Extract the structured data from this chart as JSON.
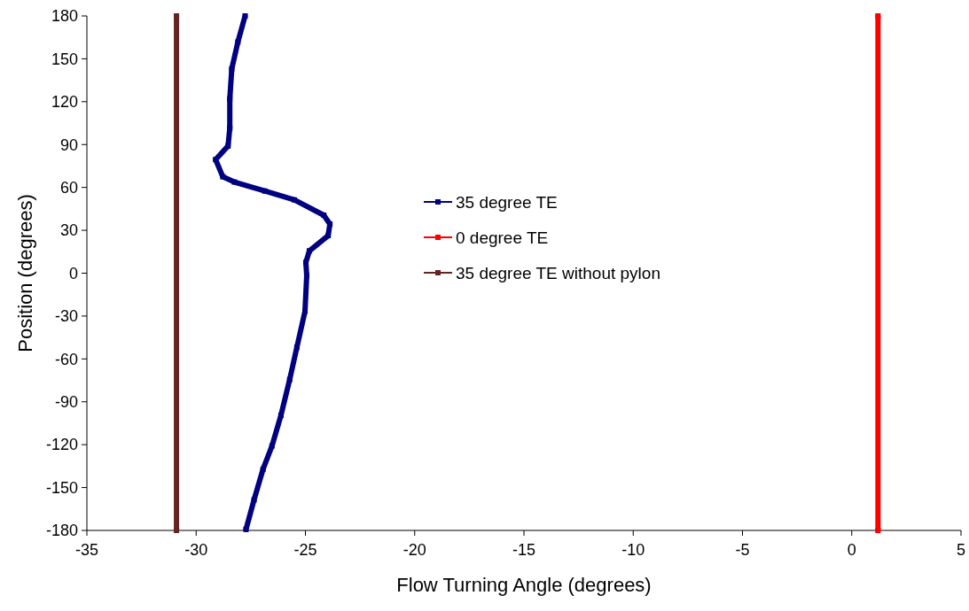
{
  "chart_data": {
    "type": "line",
    "xlabel": "Flow Turning Angle (degrees)",
    "ylabel": "Position (degrees)",
    "xlim": [
      -35,
      5
    ],
    "xticks": [
      -35,
      -30,
      -25,
      -20,
      -15,
      -10,
      -5,
      0,
      5
    ],
    "ylim": [
      -180,
      180
    ],
    "yticks": [
      -180,
      -150,
      -120,
      -90,
      -60,
      -30,
      0,
      30,
      60,
      90,
      120,
      150,
      180
    ],
    "grid": false,
    "legend": "center",
    "marker": "square",
    "line_style": "solid",
    "series": [
      {
        "name": "35 degree TE",
        "color": "#000080",
        "x": [
          -27.76,
          -28.09,
          -28.37,
          -28.46,
          -28.46,
          -28.54,
          -29.11,
          -28.78,
          -28.25,
          -26.86,
          -25.51,
          -24.16,
          -23.88,
          -23.96,
          -24.82,
          -24.98,
          -24.94,
          -25.02,
          -25.39,
          -25.72,
          -26.12,
          -26.53,
          -26.94,
          -27.35,
          -27.72
        ],
        "values": [
          180,
          161.8,
          143,
          122,
          101.5,
          89,
          79.5,
          67.5,
          63.8,
          57.5,
          51.3,
          40.6,
          34.4,
          26.3,
          15.6,
          7.5,
          -1.6,
          -26.7,
          -51.8,
          -74.4,
          -99.5,
          -120.9,
          -137.2,
          -158.6,
          -179.3
        ]
      },
      {
        "name": "0 degree TE",
        "color": "#ff0000",
        "x": [
          1.2,
          1.2
        ],
        "values": [
          -180,
          180
        ]
      },
      {
        "name": "35 degree TE without pylon",
        "color": "#632523",
        "x": [
          -30.9,
          -30.9
        ],
        "values": [
          -180,
          180
        ]
      }
    ]
  }
}
